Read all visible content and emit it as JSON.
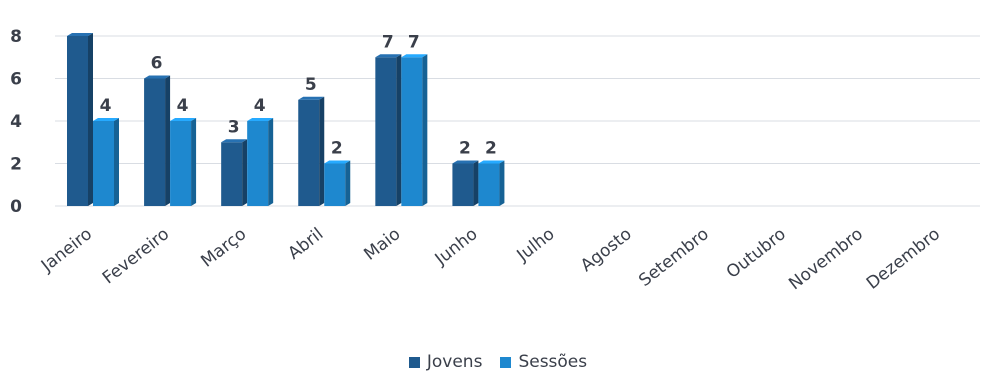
{
  "chart_data": {
    "type": "bar",
    "categories": [
      "Janeiro",
      "Fevereiro",
      "Março",
      "Abril",
      "Maio",
      "Junho",
      "Julho",
      "Agosto",
      "Setembro",
      "Outubro",
      "Novembro",
      "Dezembro"
    ],
    "series": [
      {
        "name": "Jovens",
        "values": [
          8,
          6,
          3,
          5,
          7,
          2,
          null,
          null,
          null,
          null,
          null,
          null
        ],
        "color": "#1f5a8e"
      },
      {
        "name": "Sessões",
        "values": [
          4,
          4,
          4,
          2,
          7,
          2,
          null,
          null,
          null,
          null,
          null,
          null
        ],
        "color": "#1e88cf"
      }
    ],
    "data_labels": {
      "Jovens": [
        "",
        "6",
        "3",
        "5",
        "7",
        "2",
        "",
        "",
        "",
        "",
        "",
        ""
      ],
      "Sessões": [
        "4",
        "4",
        "4",
        "2",
        "7",
        "2",
        "",
        "",
        "",
        "",
        "",
        ""
      ]
    },
    "yticks": [
      "0",
      "2",
      "4",
      "6",
      "8"
    ],
    "ylim": [
      0,
      8
    ],
    "grid": true,
    "legend": "bottom"
  }
}
